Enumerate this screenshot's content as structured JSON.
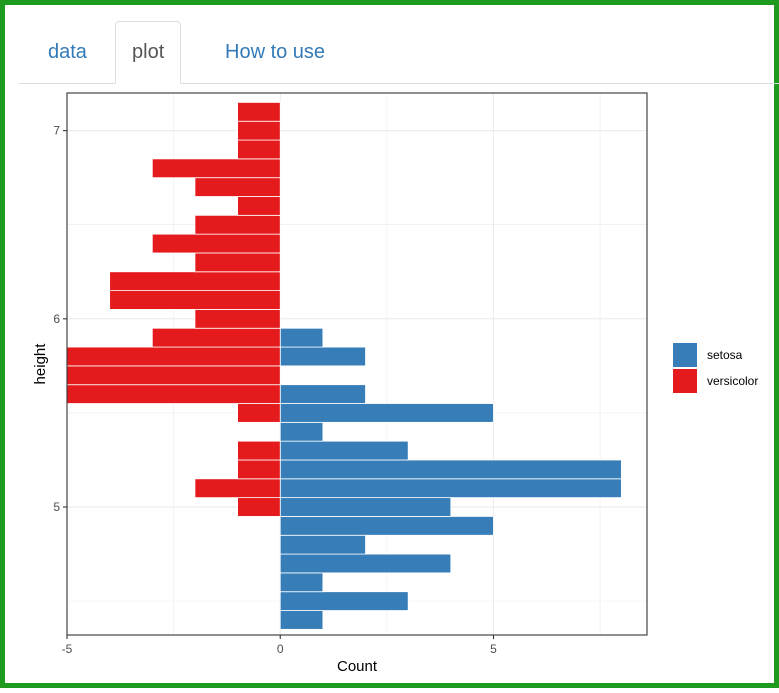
{
  "tabs": [
    {
      "label": "data",
      "active": false
    },
    {
      "label": "plot",
      "active": true
    },
    {
      "label": "How to use",
      "active": false
    }
  ],
  "colors": {
    "setosa": "#377eb8",
    "versicolor": "#e41a1c",
    "tab_link": "#337ab7",
    "tab_active": "#555555"
  },
  "chart_data": {
    "type": "bar",
    "orientation": "horizontal",
    "xlabel": "Count",
    "ylabel": "height",
    "xlim": [
      -5,
      8.6
    ],
    "ylim": [
      4.32,
      7.2
    ],
    "xticks": [
      -5,
      0,
      5
    ],
    "yticks": [
      5,
      6,
      7
    ],
    "grid": true,
    "legend_position": "right",
    "bin_width": 0.1,
    "series": [
      {
        "name": "setosa",
        "bins": [
          {
            "y": 4.4,
            "count": 1
          },
          {
            "y": 4.5,
            "count": 3
          },
          {
            "y": 4.6,
            "count": 1
          },
          {
            "y": 4.7,
            "count": 4
          },
          {
            "y": 4.8,
            "count": 2
          },
          {
            "y": 4.9,
            "count": 5
          },
          {
            "y": 5.0,
            "count": 4
          },
          {
            "y": 5.1,
            "count": 8
          },
          {
            "y": 5.2,
            "count": 8
          },
          {
            "y": 5.3,
            "count": 3
          },
          {
            "y": 5.4,
            "count": 1
          },
          {
            "y": 5.5,
            "count": 5
          },
          {
            "y": 5.6,
            "count": 2
          },
          {
            "y": 5.8,
            "count": 2
          },
          {
            "y": 5.9,
            "count": 1
          }
        ]
      },
      {
        "name": "versicolor",
        "bins": [
          {
            "y": 5.0,
            "count": -1
          },
          {
            "y": 5.1,
            "count": -2
          },
          {
            "y": 5.2,
            "count": -1
          },
          {
            "y": 5.3,
            "count": -1
          },
          {
            "y": 5.5,
            "count": -1
          },
          {
            "y": 5.6,
            "count": -5
          },
          {
            "y": 5.7,
            "count": -5
          },
          {
            "y": 5.8,
            "count": -5
          },
          {
            "y": 5.9,
            "count": -3
          },
          {
            "y": 6.0,
            "count": -2
          },
          {
            "y": 6.1,
            "count": -4
          },
          {
            "y": 6.2,
            "count": -4
          },
          {
            "y": 6.3,
            "count": -2
          },
          {
            "y": 6.4,
            "count": -3
          },
          {
            "y": 6.5,
            "count": -2
          },
          {
            "y": 6.6,
            "count": -1
          },
          {
            "y": 6.7,
            "count": -2
          },
          {
            "y": 6.8,
            "count": -3
          },
          {
            "y": 6.9,
            "count": -1
          },
          {
            "y": 7.0,
            "count": -1
          },
          {
            "y": 7.1,
            "count": -1
          }
        ]
      }
    ]
  }
}
